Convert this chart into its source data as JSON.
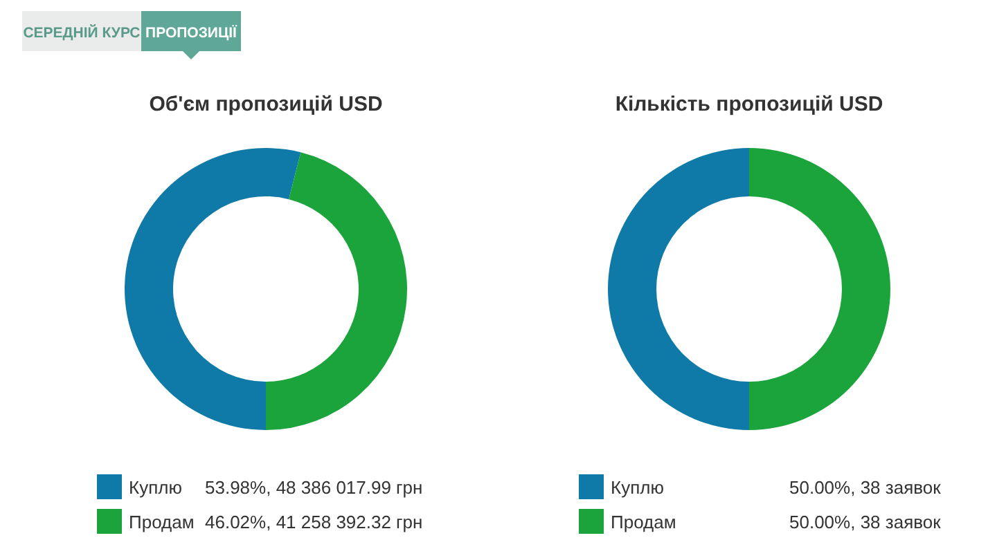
{
  "chart_data": [
    {
      "type": "donut",
      "title": "Об'єм пропозицій USD",
      "annotations": [
        "СЕРЕДНІЙ КУРС",
        "ПРОПОЗИЦІЇ"
      ],
      "categories": [
        "Куплю",
        "Продам"
      ],
      "values": [
        48386017.99,
        41258392.32
      ],
      "colors": [
        "#0f7aa8",
        "#1ba43b"
      ],
      "value_labels": [
        "53.98%, 48 386 017.99 грн",
        "46.02%, 41 258 392.32 грн"
      ],
      "legend": "bottom"
    },
    {
      "type": "donut",
      "title": "Кількість пропозицій USD",
      "categories": [
        "Куплю",
        "Продам"
      ],
      "values": [
        38,
        38
      ],
      "colors": [
        "#0f7aa8",
        "#1ba43b"
      ],
      "value_labels": [
        "50.00%, 38 заявок",
        "50.00%, 38 заявок"
      ],
      "legend": "bottom"
    }
  ]
}
